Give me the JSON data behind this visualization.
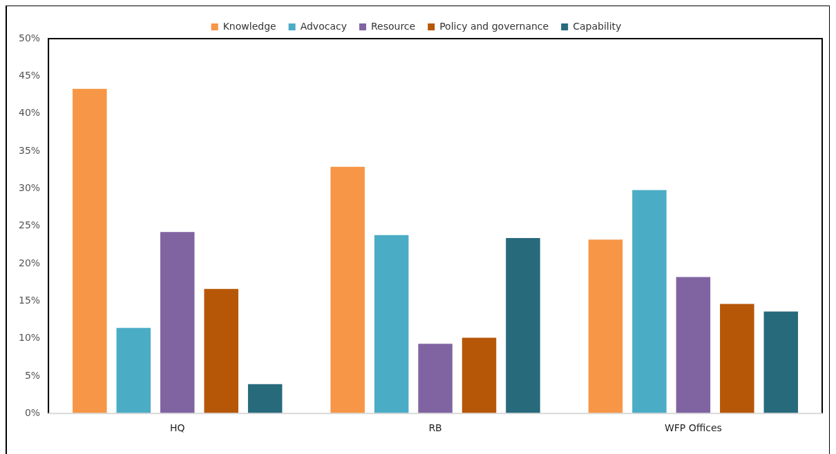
{
  "chart_data": {
    "type": "bar",
    "categories": [
      "HQ",
      "RB",
      "WFP Offices"
    ],
    "series": [
      {
        "name": "Knowledge",
        "color": "#f79646",
        "values": [
          43.3,
          32.9,
          23.2
        ]
      },
      {
        "name": "Advocacy",
        "color": "#4bacc6",
        "values": [
          11.4,
          23.8,
          29.8
        ]
      },
      {
        "name": "Resource",
        "color": "#8064a2",
        "values": [
          24.2,
          9.3,
          18.2
        ]
      },
      {
        "name": "Policy and governance",
        "color": "#b65708",
        "values": [
          16.6,
          10.1,
          14.6
        ]
      },
      {
        "name": "Capability",
        "color": "#276a7c",
        "values": [
          3.9,
          23.4,
          13.6
        ]
      }
    ],
    "ylim": [
      0,
      50
    ],
    "yticks": [
      {
        "value": 0,
        "label": "0%"
      },
      {
        "value": 5,
        "label": "5%"
      },
      {
        "value": 10,
        "label": "10%"
      },
      {
        "value": 15,
        "label": "15%"
      },
      {
        "value": 20,
        "label": "20%"
      },
      {
        "value": 25,
        "label": "25%"
      },
      {
        "value": 30,
        "label": "30%"
      },
      {
        "value": 35,
        "label": "35%"
      },
      {
        "value": 40,
        "label": "40%"
      },
      {
        "value": 45,
        "label": "45%"
      },
      {
        "value": 50,
        "label": "50%"
      }
    ],
    "grid": false,
    "legend": "top"
  }
}
